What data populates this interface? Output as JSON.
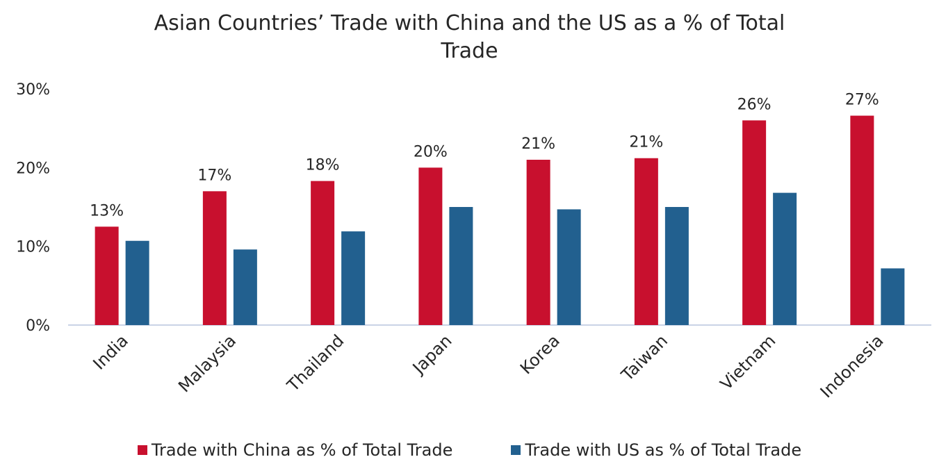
{
  "chart_data": {
    "type": "bar",
    "title_line1": "Asian Countries’ Trade with China and the US as a % of Total",
    "title_line2": "Trade",
    "categories": [
      "India",
      "Malaysia",
      "Thailand",
      "Japan",
      "Korea",
      "Taiwan",
      "Vietnam",
      "Indonesia"
    ],
    "series": [
      {
        "name": "Trade with China as % of Total Trade",
        "color": "#c8102e",
        "values": [
          12.5,
          17.0,
          18.3,
          20.0,
          21.0,
          21.2,
          26.0,
          26.6
        ],
        "data_labels": [
          "13%",
          "17%",
          "18%",
          "20%",
          "21%",
          "21%",
          "26%",
          "27%"
        ]
      },
      {
        "name": "Trade with US as % of Total Trade",
        "color": "#22608f",
        "values": [
          10.7,
          9.6,
          11.9,
          15.0,
          14.7,
          15.0,
          16.8,
          7.2
        ]
      }
    ],
    "y_ticks": [
      "0%",
      "10%",
      "20%",
      "30%"
    ],
    "ylim": [
      0,
      30
    ],
    "xlabel": "",
    "ylabel": "",
    "grid": false,
    "legend_position": "bottom"
  }
}
